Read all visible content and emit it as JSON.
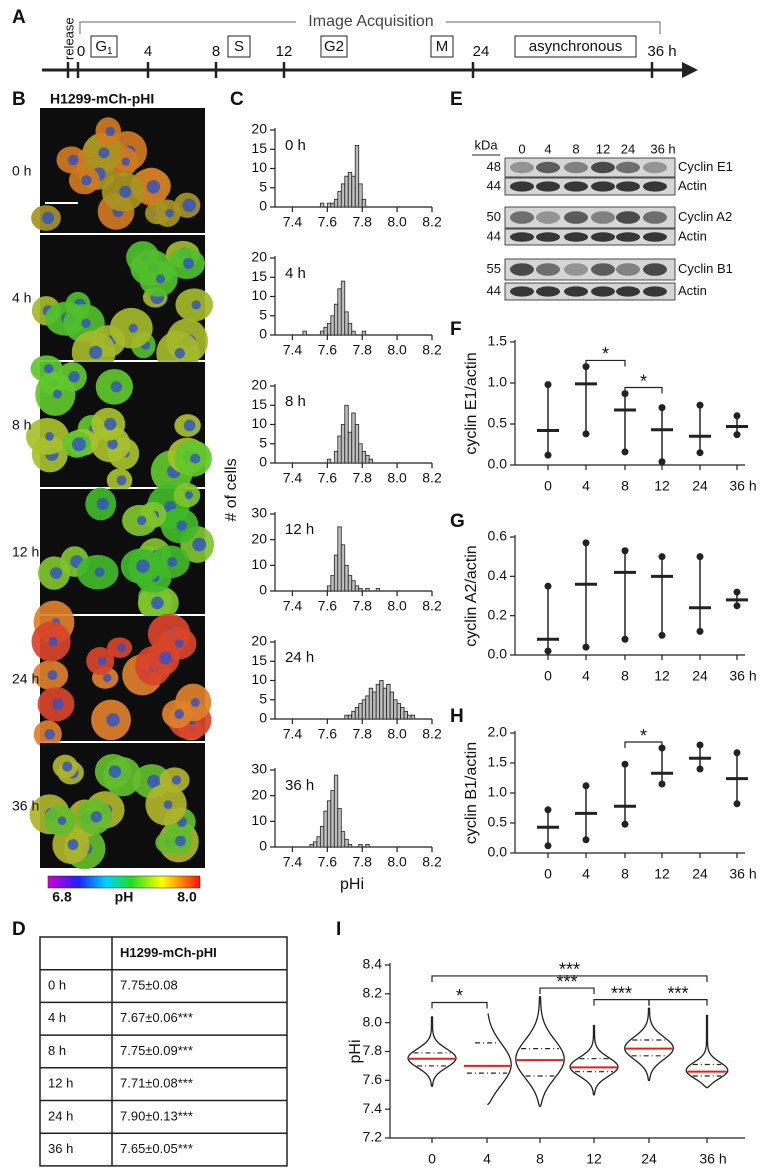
{
  "panel_labels": [
    "A",
    "B",
    "C",
    "D",
    "E",
    "F",
    "G",
    "H",
    "I"
  ],
  "timeline": {
    "release": "release",
    "title": "Image Acquisition",
    "g1": [
      "G",
      "1"
    ],
    "ticks": [
      "0",
      "4",
      "8",
      "12",
      "24",
      "36 h"
    ],
    "phases": [
      "S",
      "G2",
      "M",
      "asynchronous"
    ]
  },
  "micrographs": {
    "title": "H1299-mCh-pHI",
    "times": [
      "0 h",
      "4 h",
      "8 h",
      "12 h",
      "24 h",
      "36 h"
    ],
    "colorbar": {
      "min": "6.8",
      "label": "pH",
      "max": "8.0"
    }
  },
  "histogram_labels": {
    "y": "# of cells",
    "x": "pHi"
  },
  "blot": {
    "unit": "kDa",
    "lanes": [
      "0",
      "4",
      "8",
      "12",
      "24",
      "36 h"
    ],
    "rows": [
      {
        "mw": 48,
        "label": "Cyclin E1"
      },
      {
        "mw": 44,
        "label": "Actin"
      },
      {
        "mw": 50,
        "label": "Cyclin A2"
      },
      {
        "mw": 44,
        "label": "Actin"
      },
      {
        "mw": 55,
        "label": "Cyclin B1"
      },
      {
        "mw": 44,
        "label": "Actin"
      }
    ]
  },
  "table": {
    "header": "H1299-mCh-pHI",
    "rows": [
      [
        "0 h",
        "7.75±0.08"
      ],
      [
        "4 h",
        "7.67±0.06***"
      ],
      [
        "8 h",
        "7.75±0.09***"
      ],
      [
        "12 h",
        "7.71±0.08***"
      ],
      [
        "24 h",
        "7.90±0.13***"
      ],
      [
        "36 h",
        "7.65±0.05***"
      ]
    ]
  },
  "chart_data": [
    {
      "type": "histogram",
      "label": "0 h",
      "color": "#bdbdbd",
      "bins": [
        7.56,
        7.58,
        7.6,
        7.62,
        7.64,
        7.66,
        7.68,
        7.7,
        7.72,
        7.74,
        7.76,
        7.78,
        7.8,
        7.82,
        7.84
      ],
      "counts": [
        1,
        0,
        1,
        1,
        2,
        4,
        6,
        8,
        9,
        8,
        16,
        6,
        2,
        0
      ],
      "xlim": [
        7.3,
        8.2
      ],
      "xticks": [
        7.4,
        7.6,
        7.8,
        {
          "value": 8,
          "label": "8.0"
        },
        8.2
      ],
      "ylim": [
        0,
        20
      ],
      "yticks": [
        0,
        5,
        10,
        15,
        20
      ]
    },
    {
      "type": "histogram",
      "label": "4 h",
      "color": "#bdbdbd",
      "bins": [
        7.46,
        7.48,
        7.5,
        7.52,
        7.54,
        7.56,
        7.58,
        7.6,
        7.62,
        7.64,
        7.66,
        7.68,
        7.7,
        7.72,
        7.74,
        7.76,
        7.78,
        7.8,
        7.82
      ],
      "counts": [
        1,
        0,
        0,
        0,
        0,
        1,
        2,
        3,
        5,
        8,
        12,
        14,
        6,
        3,
        1,
        0,
        0,
        1
      ],
      "xlim": [
        7.3,
        8.2
      ],
      "xticks": [
        7.4,
        7.6,
        7.8,
        {
          "value": 8,
          "label": "8.0"
        },
        8.2
      ],
      "ylim": [
        0,
        20
      ],
      "yticks": [
        0,
        5,
        10,
        15,
        20
      ]
    },
    {
      "type": "histogram",
      "label": "8 h",
      "color": "#bdbdbd",
      "bins": [
        7.6,
        7.62,
        7.64,
        7.66,
        7.68,
        7.7,
        7.72,
        7.74,
        7.76,
        7.78,
        7.8,
        7.82,
        7.84,
        7.86,
        7.88,
        7.9
      ],
      "counts": [
        1,
        0,
        3,
        7,
        10,
        15,
        8,
        13,
        10,
        5,
        3,
        2,
        1,
        0,
        0
      ],
      "xlim": [
        7.3,
        8.2
      ],
      "xticks": [
        7.4,
        7.6,
        7.8,
        {
          "value": 8,
          "label": "8.0"
        },
        8.2
      ],
      "ylim": [
        0,
        20
      ],
      "yticks": [
        0,
        5,
        10,
        15,
        20
      ]
    },
    {
      "type": "histogram",
      "label": "12 h",
      "color": "#bdbdbd",
      "bins": [
        7.6,
        7.62,
        7.64,
        7.66,
        7.68,
        7.7,
        7.72,
        7.74,
        7.76,
        7.78,
        7.8,
        7.82,
        7.84,
        7.86,
        7.88,
        7.9,
        7.92
      ],
      "counts": [
        2,
        6,
        14,
        25,
        18,
        10,
        6,
        4,
        2,
        1,
        0,
        1,
        0,
        0,
        1,
        0
      ],
      "xlim": [
        7.3,
        8.2
      ],
      "xticks": [
        7.4,
        7.6,
        7.8,
        {
          "value": 8,
          "label": "8.0"
        },
        8.2
      ],
      "ylim": [
        0,
        30
      ],
      "yticks": [
        0,
        10,
        20,
        30
      ]
    },
    {
      "type": "histogram",
      "label": "24 h",
      "color": "#bdbdbd",
      "bins": [
        7.7,
        7.72,
        7.74,
        7.76,
        7.78,
        7.8,
        7.82,
        7.84,
        7.86,
        7.88,
        7.9,
        7.92,
        7.94,
        7.96,
        7.98,
        8.0,
        8.02,
        8.04,
        8.06,
        8.08,
        8.1
      ],
      "counts": [
        1,
        1,
        2,
        3,
        4,
        5,
        6,
        8,
        7,
        9,
        10,
        8,
        9,
        7,
        5,
        4,
        3,
        2,
        1,
        1
      ],
      "xlim": [
        7.3,
        8.2
      ],
      "xticks": [
        7.4,
        7.6,
        7.8,
        {
          "value": 8,
          "label": "8.0"
        },
        8.2
      ],
      "ylim": [
        0,
        20
      ],
      "yticks": [
        0,
        5,
        10,
        15,
        20
      ]
    },
    {
      "type": "histogram",
      "label": "36 h",
      "color": "#bdbdbd",
      "bins": [
        7.5,
        7.52,
        7.54,
        7.56,
        7.58,
        7.6,
        7.62,
        7.64,
        7.66,
        7.68,
        7.7,
        7.72,
        7.74,
        7.76,
        7.78,
        7.8,
        7.82,
        7.84
      ],
      "counts": [
        1,
        2,
        4,
        8,
        14,
        18,
        22,
        28,
        15,
        6,
        3,
        1,
        0,
        0,
        1,
        0,
        1
      ],
      "xlim": [
        7.3,
        8.2
      ],
      "xticks": [
        7.4,
        7.6,
        7.8,
        {
          "value": 8,
          "label": "8.0"
        },
        8.2
      ],
      "ylim": [
        0,
        30
      ],
      "yticks": [
        0,
        10,
        20,
        30
      ]
    },
    {
      "type": "dot",
      "ylabel": "cyclin E1/actin",
      "color": "#222222",
      "categories": [
        "0",
        "4",
        "8",
        "12",
        "24",
        "36 h"
      ],
      "means": [
        0.42,
        0.99,
        0.67,
        0.43,
        0.35,
        0.47
      ],
      "points": [
        [
          0.12,
          0.98
        ],
        [
          0.38,
          1.2
        ],
        [
          0.16,
          0.87
        ],
        [
          0.04,
          0.7
        ],
        [
          0.15,
          0.73
        ],
        [
          0.37,
          0.6
        ]
      ],
      "ylim": [
        0,
        1.5
      ],
      "yticks": [
        {
          "value": 0,
          "label": "0.0"
        },
        0.5,
        {
          "value": 1,
          "label": "1.0"
        },
        1.5
      ],
      "significance": [
        {
          "between": [
            1,
            2
          ],
          "label": "*"
        },
        {
          "between": [
            2,
            3
          ],
          "label": "*"
        }
      ]
    },
    {
      "type": "dot",
      "ylabel": "cyclin A2/actin",
      "color": "#222222",
      "categories": [
        "0",
        "4",
        "8",
        "12",
        "24",
        "36 h"
      ],
      "means": [
        0.08,
        0.36,
        0.42,
        0.4,
        0.24,
        0.28
      ],
      "points": [
        [
          0.02,
          0.35
        ],
        [
          0.04,
          0.57
        ],
        [
          0.08,
          0.53
        ],
        [
          0.1,
          0.5
        ],
        [
          0.12,
          0.5
        ],
        [
          0.25,
          0.32
        ]
      ],
      "ylim": [
        0,
        0.6
      ],
      "yticks": [
        {
          "value": 0,
          "label": "0.0"
        },
        0.2,
        0.4,
        0.6
      ],
      "significance": []
    },
    {
      "type": "dot",
      "ylabel": "cyclin B1/actin",
      "color": "#222222",
      "categories": [
        "0",
        "4",
        "8",
        "12",
        "24",
        "36 h"
      ],
      "means": [
        0.43,
        0.66,
        0.78,
        1.33,
        1.58,
        1.24
      ],
      "points": [
        [
          0.12,
          0.72
        ],
        [
          0.22,
          1.12
        ],
        [
          0.48,
          1.48
        ],
        [
          1.15,
          1.75
        ],
        [
          1.4,
          1.8
        ],
        [
          0.82,
          1.67
        ]
      ],
      "ylim": [
        0,
        2
      ],
      "yticks": [
        {
          "value": 0,
          "label": "0.0"
        },
        0.5,
        {
          "value": 1,
          "label": "1.0"
        },
        1.5,
        {
          "value": 2,
          "label": "2.0"
        }
      ],
      "significance": [
        {
          "between": [
            2,
            3
          ],
          "label": "*"
        }
      ]
    },
    {
      "type": "violin",
      "ylabel": "pHi",
      "color": "#222222",
      "median_color": "#e3211c",
      "categories": [
        "0",
        "4",
        "8",
        "12",
        "24",
        "36 h"
      ],
      "medians": [
        7.75,
        7.7,
        7.74,
        7.69,
        7.82,
        7.66
      ],
      "quartiles": [
        [
          7.7,
          7.79
        ],
        [
          7.65,
          7.86
        ],
        [
          7.63,
          7.82
        ],
        [
          7.66,
          7.75
        ],
        [
          7.77,
          7.88
        ],
        [
          7.63,
          7.71
        ]
      ],
      "ranges": [
        [
          7.56,
          8.04
        ],
        [
          7.43,
          8.08
        ],
        [
          7.42,
          8.18
        ],
        [
          7.5,
          7.98
        ],
        [
          7.6,
          8.1
        ],
        [
          7.55,
          8.05
        ]
      ],
      "ylim": [
        7.2,
        8.4
      ],
      "yticks": [
        7.2,
        7.4,
        7.6,
        7.8,
        {
          "value": 8,
          "label": "8.0"
        },
        8.2,
        8.4
      ],
      "significance": [
        {
          "between": [
            0,
            1
          ],
          "label": "*"
        },
        {
          "between": [
            2,
            3
          ],
          "label": "***"
        },
        {
          "between": [
            3,
            4
          ],
          "label": "***"
        },
        {
          "between": [
            4,
            5
          ],
          "label": "***"
        },
        {
          "between": [
            0,
            5
          ],
          "label": "***"
        }
      ]
    }
  ]
}
